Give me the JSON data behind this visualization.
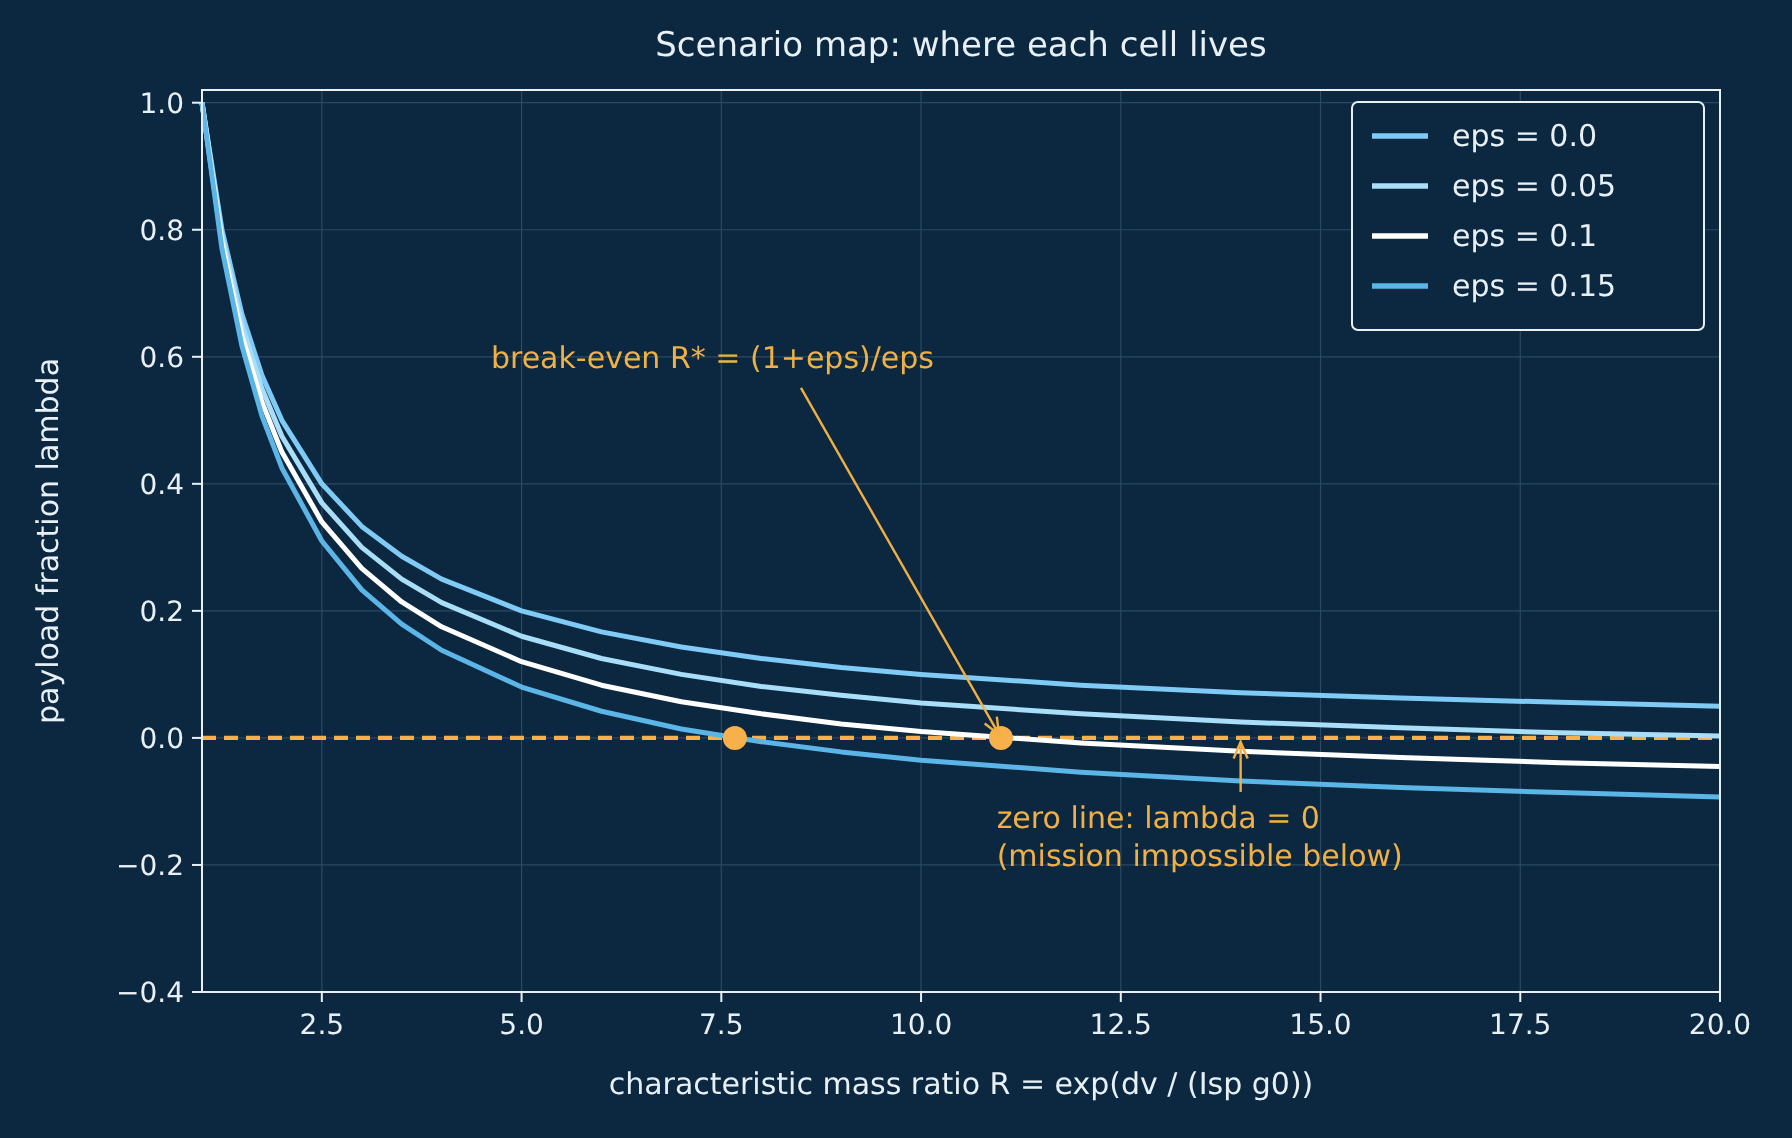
{
  "chart_data": {
    "type": "line",
    "title": "Scenario map: where each cell lives",
    "xlabel": "characteristic mass ratio  R = exp(dv / (Isp g0))",
    "ylabel": "payload fraction  lambda",
    "x": [
      1,
      1.25,
      1.5,
      1.75,
      2,
      2.5,
      3,
      3.5,
      4,
      5,
      6,
      7,
      8,
      9,
      10,
      12,
      14,
      16,
      18,
      20
    ],
    "series": [
      {
        "name": "eps = 0.0",
        "color": "#7fcbf5",
        "values": [
          1,
          0.8,
          0.667,
          0.571,
          0.5,
          0.4,
          0.333,
          0.286,
          0.25,
          0.2,
          0.167,
          0.143,
          0.125,
          0.111,
          0.1,
          0.083,
          0.071,
          0.063,
          0.056,
          0.05
        ]
      },
      {
        "name": "eps = 0.05",
        "color": "#a9def8",
        "values": [
          1,
          0.79,
          0.65,
          0.55,
          0.475,
          0.37,
          0.3,
          0.25,
          0.213,
          0.16,
          0.125,
          0.1,
          0.081,
          0.067,
          0.055,
          0.038,
          0.025,
          0.016,
          0.008,
          0.003
        ]
      },
      {
        "name": "eps = 0.1",
        "color": "#ffffff",
        "values": [
          1,
          0.78,
          0.633,
          0.529,
          0.45,
          0.34,
          0.267,
          0.214,
          0.175,
          0.12,
          0.083,
          0.057,
          0.038,
          0.022,
          0.01,
          -0.008,
          -0.021,
          -0.031,
          -0.039,
          -0.045
        ]
      },
      {
        "name": "eps = 0.15",
        "color": "#5bb5e6",
        "values": [
          1,
          0.77,
          0.617,
          0.507,
          0.425,
          0.31,
          0.233,
          0.179,
          0.138,
          0.08,
          0.042,
          0.014,
          -0.006,
          -0.022,
          -0.035,
          -0.054,
          -0.068,
          -0.078,
          -0.086,
          -0.093
        ]
      },
      {
        "type": "scatter",
        "color": "#f7b04a",
        "x": [
          7.67,
          11
        ],
        "values": [
          0,
          0
        ],
        "marker": "circle"
      }
    ],
    "xlim": [
      1,
      20
    ],
    "xticks": [
      2.5,
      {
        "value": 5,
        "label": "5.0"
      },
      {
        "value": 7.5,
        "label": "7.5"
      },
      {
        "value": 10,
        "label": "10.0"
      },
      12.5,
      {
        "value": 15,
        "label": "15.0"
      },
      17.5,
      {
        "value": 20,
        "label": "20.0"
      }
    ],
    "ylim": [
      -0.4,
      1.02
    ],
    "yticks": [
      {
        "value": -0.4,
        "label": "−0.4"
      },
      {
        "value": -0.2,
        "label": "−0.2"
      },
      {
        "value": 0,
        "label": "0.0"
      },
      0.2,
      0.4,
      0.6,
      0.8,
      {
        "value": 1,
        "label": "1.0"
      }
    ],
    "ref_lines": [
      {
        "axis": "y",
        "value": 0,
        "color": "#f7b04a",
        "line_style": "dashed"
      }
    ],
    "annotations": [
      {
        "text": "break-even R* = (1+eps)/eps",
        "x": 11,
        "y": 0
      },
      {
        "text": "zero line: lambda = 0\n(mission impossible below)",
        "x": 14,
        "y": 0
      }
    ],
    "grid": true,
    "legend": "top right",
    "line_style": "solid",
    "marker": "none"
  }
}
